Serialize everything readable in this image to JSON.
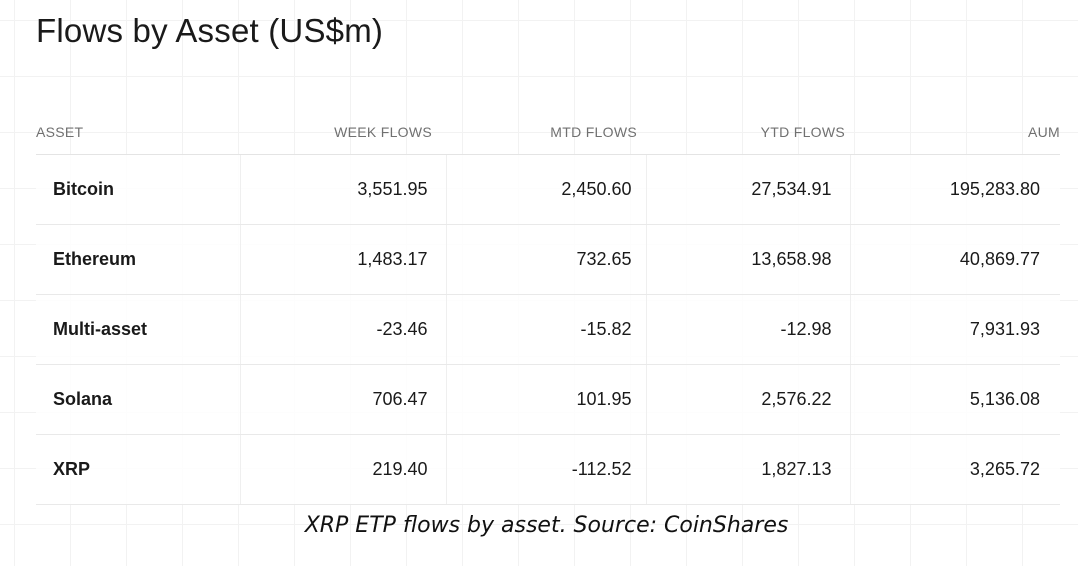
{
  "chart_data": {
    "type": "table",
    "title": "Flows by Asset (US$m)",
    "columns": [
      "ASSET",
      "WEEK FLOWS",
      "MTD FLOWS",
      "YTD FLOWS",
      "AUM"
    ],
    "rows": [
      {
        "asset": "Bitcoin",
        "week": "3,551.95",
        "mtd": "2,450.60",
        "ytd": "27,534.91",
        "aum": "195,283.80"
      },
      {
        "asset": "Ethereum",
        "week": "1,483.17",
        "mtd": "732.65",
        "ytd": "13,658.98",
        "aum": "40,869.77"
      },
      {
        "asset": "Multi-asset",
        "week": "-23.46",
        "mtd": "-15.82",
        "ytd": "-12.98",
        "aum": "7,931.93"
      },
      {
        "asset": "Solana",
        "week": "706.47",
        "mtd": "101.95",
        "ytd": "2,576.22",
        "aum": "5,136.08"
      },
      {
        "asset": "XRP",
        "week": "219.40",
        "mtd": "-112.52",
        "ytd": "1,827.13",
        "aum": "3,265.72"
      }
    ],
    "caption": "XRP ETP flows by asset. Source: CoinShares"
  }
}
